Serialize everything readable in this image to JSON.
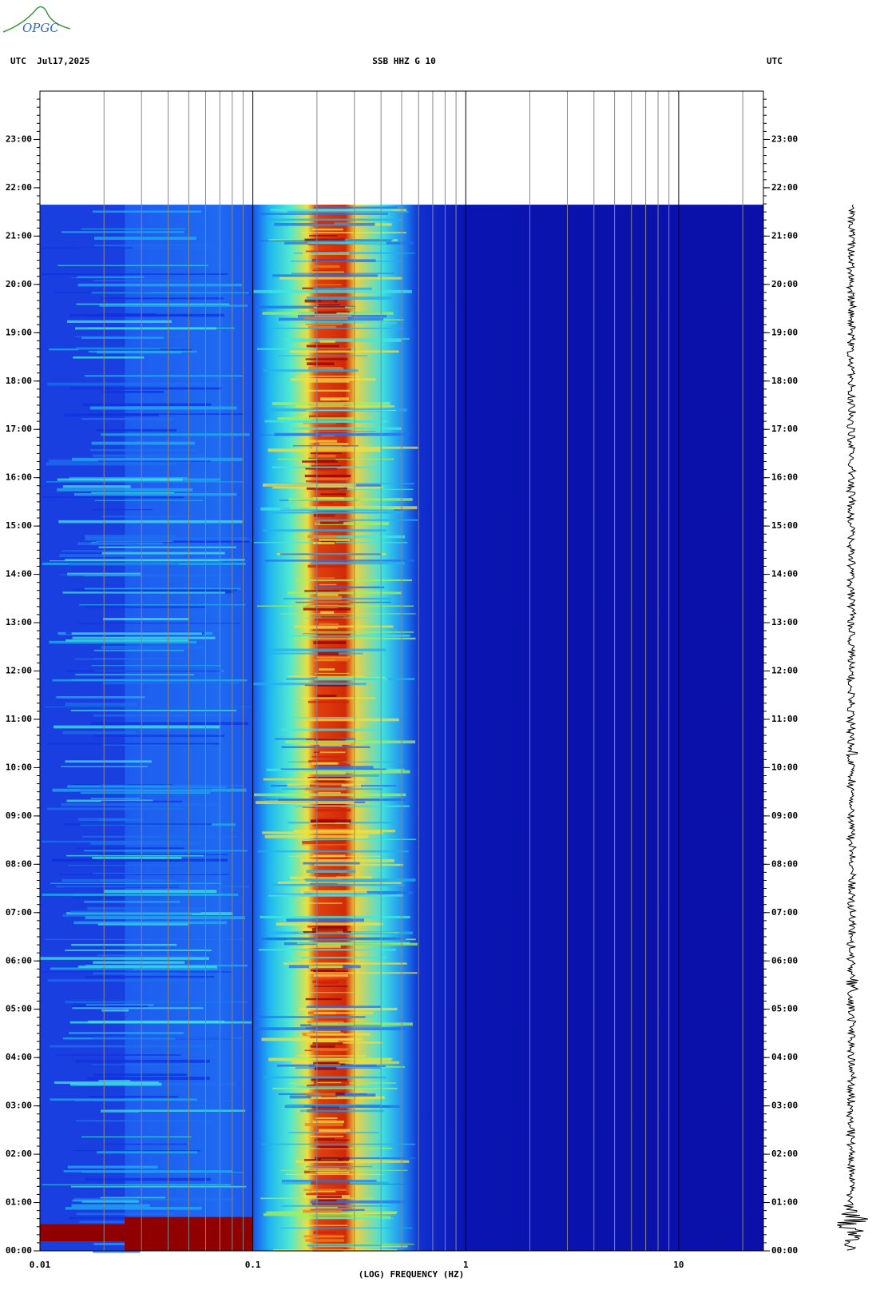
{
  "logo": "OPGC",
  "chart_data": {
    "type": "spectrogram",
    "header_left": "UTC  Jul17,2025",
    "title": "SSB HHZ G 10",
    "header_right": "UTC",
    "xlabel": "(LOG) FREQUENCY (HZ)",
    "xscale": "log",
    "xlim": [
      0.01,
      25
    ],
    "xticks": [
      0.01,
      0.1,
      1,
      10
    ],
    "ylim": [
      0,
      24
    ],
    "yticks": [
      {
        "value": 0,
        "label": "00:00"
      },
      {
        "value": 1,
        "label": "01:00"
      },
      {
        "value": 2,
        "label": "02:00"
      },
      {
        "value": 3,
        "label": "03:00"
      },
      {
        "value": 4,
        "label": "04:00"
      },
      {
        "value": 5,
        "label": "05:00"
      },
      {
        "value": 6,
        "label": "06:00"
      },
      {
        "value": 7,
        "label": "07:00"
      },
      {
        "value": 8,
        "label": "08:00"
      },
      {
        "value": 9,
        "label": "09:00"
      },
      {
        "value": 10,
        "label": "10:00"
      },
      {
        "value": 11,
        "label": "11:00"
      },
      {
        "value": 12,
        "label": "12:00"
      },
      {
        "value": 13,
        "label": "13:00"
      },
      {
        "value": 14,
        "label": "14:00"
      },
      {
        "value": 15,
        "label": "15:00"
      },
      {
        "value": 16,
        "label": "16:00"
      },
      {
        "value": 17,
        "label": "17:00"
      },
      {
        "value": 18,
        "label": "18:00"
      },
      {
        "value": 19,
        "label": "19:00"
      },
      {
        "value": 20,
        "label": "20:00"
      },
      {
        "value": 21,
        "label": "21:00"
      },
      {
        "value": 22,
        "label": "22:00"
      },
      {
        "value": 23,
        "label": "23:00"
      }
    ],
    "grid": true
  }
}
